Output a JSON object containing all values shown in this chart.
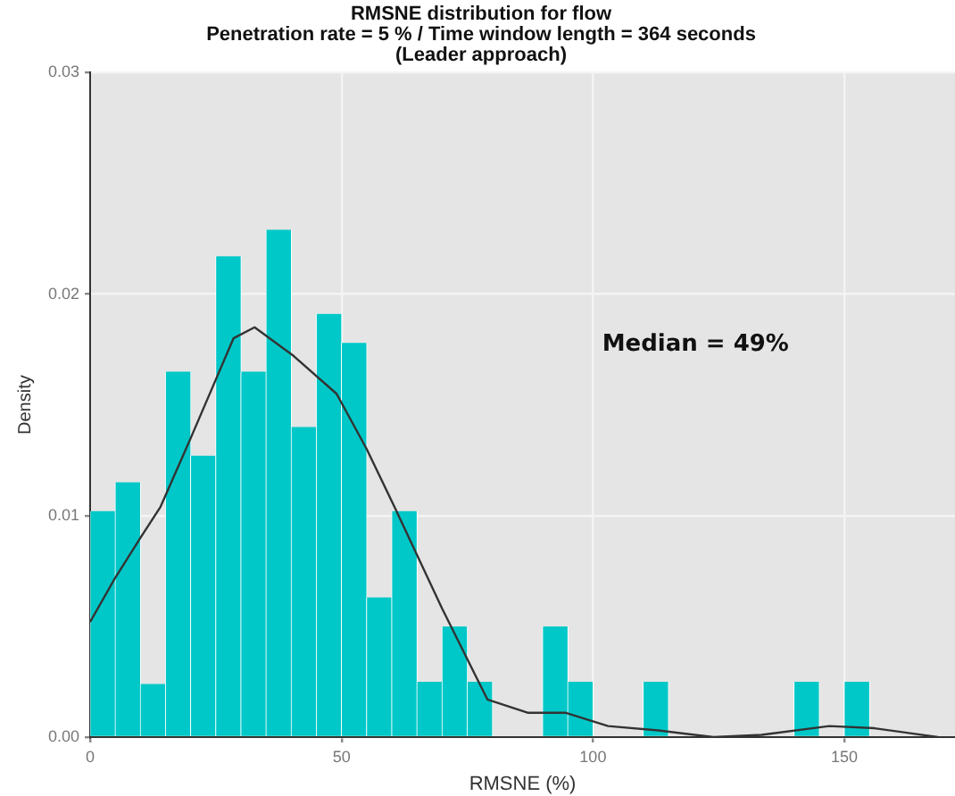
{
  "chart_data": {
    "type": "histogram",
    "title": "RMSNE distribution for flow",
    "subtitle": "Penetration rate = 5 % / Time window length = 364 seconds\n(Leader approach)",
    "xlabel": "RMSNE (%)",
    "ylabel": "Density",
    "bins": [
      0,
      5,
      10,
      15,
      20,
      25,
      30,
      35,
      40,
      45,
      50,
      55,
      60,
      65,
      70,
      75,
      80,
      85,
      90,
      95,
      100,
      105,
      110,
      115,
      120,
      125,
      130,
      135,
      140,
      145,
      150,
      155
    ],
    "series": [
      {
        "color": "#00c8c8",
        "values": [
          0.0102,
          0.0115,
          0.0024,
          0.0165,
          0.0127,
          0.0217,
          0.0165,
          0.0229,
          0.014,
          0.0191,
          0.0178,
          0.0063,
          0.0102,
          0.0025,
          0.005,
          0.0025,
          0,
          0,
          0.005,
          0.0025,
          0,
          0,
          0.0025,
          0,
          0,
          0,
          0,
          0,
          0.0025,
          0,
          0.0025
        ]
      },
      {
        "type": "line",
        "color": "#333333",
        "x": [
          0,
          5,
          10,
          14,
          20,
          28.5,
          32.7,
          40.5,
          49,
          55,
          60.5,
          70,
          79,
          87,
          94.5,
          103,
          113,
          124,
          133.5,
          147,
          156,
          168.6
        ],
        "values": [
          0.0052,
          0.0072,
          0.009,
          0.0104,
          0.0135,
          0.018,
          0.0185,
          0.0172,
          0.0155,
          0.013,
          0.0104,
          0.0058,
          0.0017,
          0.0011,
          0.0011,
          0.0005,
          0.0003,
          0,
          0.0001,
          0.0005,
          0.0004,
          0
        ]
      }
    ],
    "xlim": [
      0,
      172
    ],
    "xticks": [
      0,
      50,
      100,
      150
    ],
    "ylim": [
      0,
      0.03
    ],
    "yticks": [
      {
        "value": 0,
        "label": "0.00"
      },
      {
        "value": 0.01,
        "label": "0.01"
      },
      {
        "value": 0.02,
        "label": "0.02"
      },
      {
        "value": 0.03,
        "label": "0.03"
      }
    ],
    "grid": true,
    "legend": false,
    "annotations": [
      "Median = 49%"
    ]
  }
}
